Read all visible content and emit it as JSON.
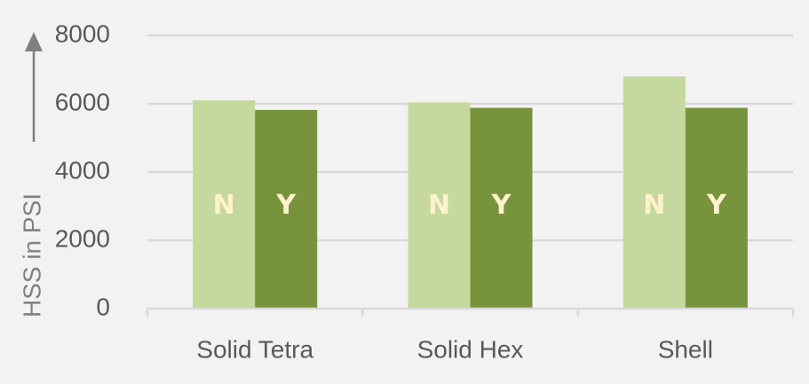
{
  "chart_data": {
    "type": "bar",
    "title": "",
    "xlabel": "",
    "ylabel": "HSS in PSI",
    "ylim": [
      0,
      8000
    ],
    "yticks": [
      "0",
      "2000",
      "4000",
      "6000",
      "8000"
    ],
    "grid": true,
    "legend": "none",
    "categories": [
      "Solid Tetra",
      "Solid Hex",
      "Shell"
    ],
    "series": [
      {
        "name": "N",
        "color": "#c5d89d",
        "label_color": "#fff2cc",
        "values": [
          6100,
          6040,
          6800
        ]
      },
      {
        "name": "Y",
        "color": "#77933c",
        "label_color": "#fff2cc",
        "values": [
          5820,
          5880,
          5880
        ]
      }
    ]
  },
  "colors": {
    "background": "#f2f2f2",
    "gridline": "#d9d9d9",
    "axis_text": "#595959",
    "axis_title": "#808080"
  }
}
